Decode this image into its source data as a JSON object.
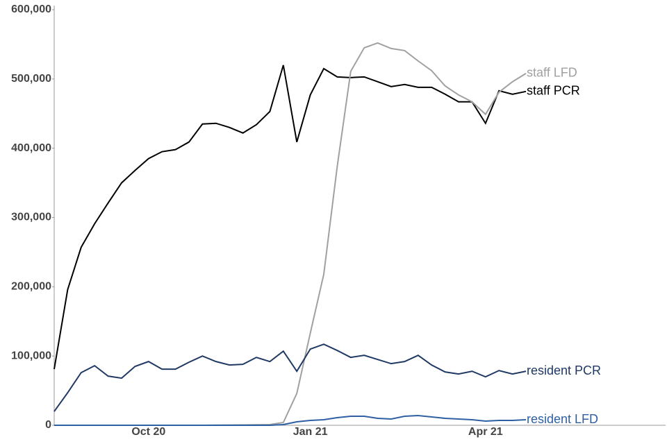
{
  "chart_data": {
    "type": "line",
    "categories": [
      null,
      null,
      null,
      null,
      null,
      null,
      null,
      "Oct 20",
      null,
      null,
      null,
      null,
      null,
      null,
      null,
      null,
      null,
      null,
      null,
      "Jan 21",
      null,
      null,
      null,
      null,
      null,
      null,
      null,
      null,
      null,
      null,
      null,
      null,
      "Apr 21",
      null,
      null,
      null
    ],
    "series": [
      {
        "name": "staff PCR",
        "color": "#000000",
        "values": [
          81000,
          196000,
          257000,
          291000,
          321000,
          350000,
          368000,
          385000,
          395000,
          398000,
          409000,
          435000,
          436000,
          430000,
          422000,
          434000,
          453000,
          520000,
          409000,
          477000,
          515000,
          503000,
          502000,
          503000,
          496000,
          489000,
          492000,
          488000,
          488000,
          478000,
          467000,
          467000,
          436000,
          483000,
          478000,
          482000
        ]
      },
      {
        "name": "staff LFD",
        "color": "#a0a0a0",
        "values": [
          0,
          0,
          0,
          0,
          0,
          0,
          0,
          0,
          0,
          0,
          0,
          0,
          300,
          400,
          500,
          700,
          1000,
          4000,
          46000,
          133000,
          218000,
          374000,
          511000,
          545000,
          552000,
          544000,
          541000,
          526000,
          512000,
          490000,
          477000,
          467000,
          449000,
          481000,
          496000,
          508000
        ]
      },
      {
        "name": "resident PCR",
        "color": "#1f3864",
        "values": [
          20000,
          47000,
          76000,
          86000,
          71000,
          68000,
          85000,
          92000,
          81000,
          81000,
          91000,
          100000,
          92000,
          87000,
          88000,
          98000,
          92000,
          107000,
          78000,
          110000,
          117000,
          108000,
          98000,
          101000,
          95000,
          89000,
          92000,
          101000,
          87000,
          77000,
          74000,
          78000,
          70000,
          79000,
          74000,
          78000
        ]
      },
      {
        "name": "resident LFD",
        "color": "#2e5fa3",
        "values": [
          0,
          0,
          0,
          0,
          0,
          0,
          0,
          0,
          0,
          0,
          0,
          0,
          0,
          0,
          0,
          0,
          0,
          1000,
          5000,
          7000,
          8000,
          11000,
          13000,
          13000,
          10000,
          9000,
          13000,
          14000,
          12000,
          10000,
          9000,
          8000,
          6000,
          7000,
          7000,
          8000
        ]
      }
    ],
    "ylim": [
      0,
      600000
    ],
    "yticks": [
      0,
      {
        "value": 100000,
        "label": "100,000"
      },
      {
        "value": 200000,
        "label": "200,000"
      },
      {
        "value": 300000,
        "label": "300,000"
      },
      {
        "value": 400000,
        "label": "400,000"
      },
      {
        "value": 500000,
        "label": "500,000"
      },
      {
        "value": 600000,
        "label": "600,000"
      }
    ]
  }
}
